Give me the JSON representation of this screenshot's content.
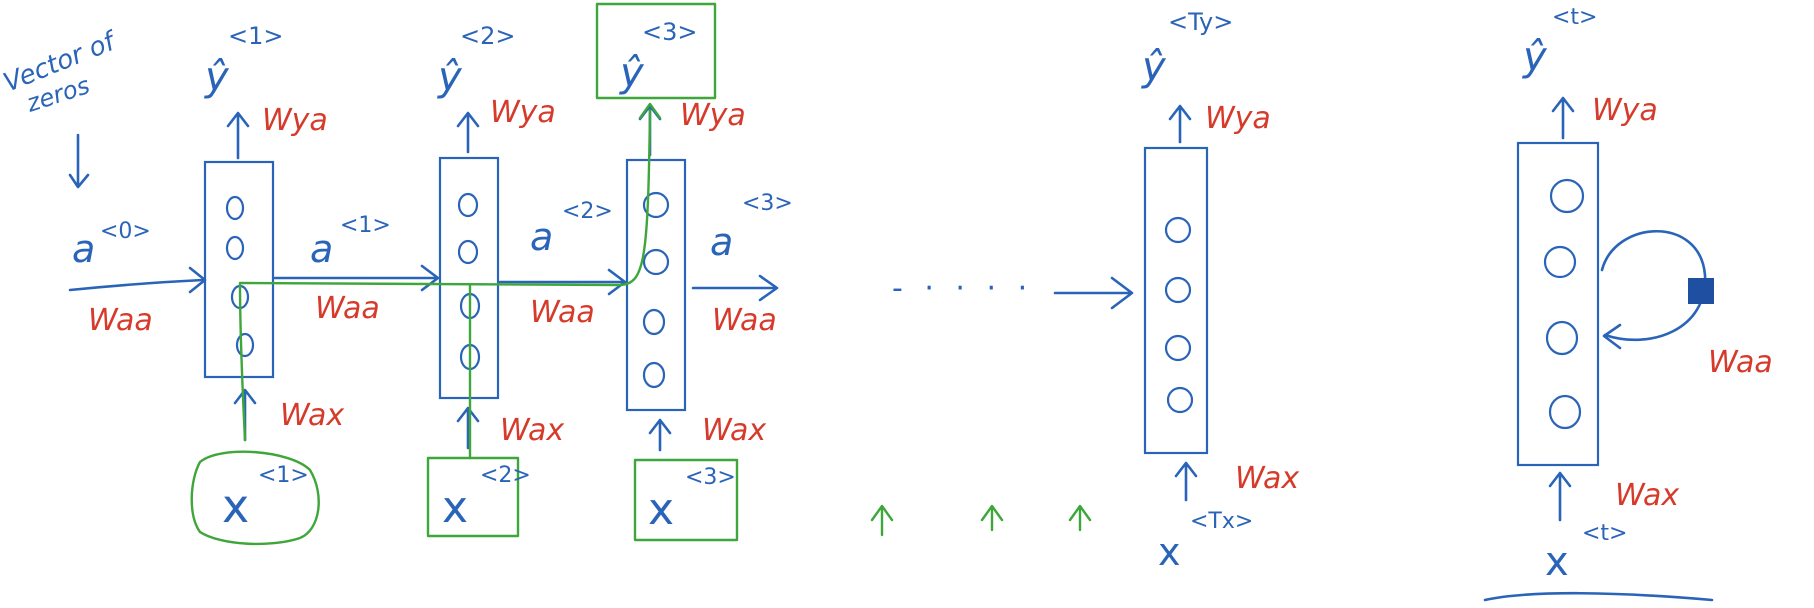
{
  "colors": {
    "ink_blue": "#2a64b8",
    "ink_red": "#d63a2a",
    "ink_green": "#3ea63a",
    "background": "#ffffff"
  },
  "note": {
    "line1": "Vector of",
    "line2": "zeros"
  },
  "steps": [
    {
      "y_hat": "ŷ",
      "y_sup": "<1>",
      "w_ya": "Wya",
      "a_in": "a",
      "a_in_sup": "<0>",
      "w_aa": "Waa",
      "w_ax": "Wax",
      "x": "x",
      "x_sup": "<1>"
    },
    {
      "y_hat": "ŷ",
      "y_sup": "<2>",
      "w_ya": "Wya",
      "a_in": "a",
      "a_in_sup": "<1>",
      "w_aa": "Waa",
      "w_ax": "Wax",
      "x": "x",
      "x_sup": "<2>"
    },
    {
      "y_hat": "ŷ",
      "y_sup": "<3>",
      "w_ya": "Wya",
      "a_in": "a",
      "a_in_sup": "<2>",
      "w_aa": "Waa",
      "w_ax": "Wax",
      "x": "x",
      "x_sup": "<3>"
    }
  ],
  "after_step3": {
    "a": "a",
    "a_sup": "<3>",
    "w_aa": "Waa"
  },
  "ellipsis": "- · · · ·",
  "last_step": {
    "y_hat": "ŷ",
    "y_sup": "<Ty>",
    "w_ya": "Wya",
    "w_ax": "Wax",
    "x": "x",
    "x_sup": "<Tx>"
  },
  "rolled": {
    "y_hat": "ŷ",
    "y_sup": "<t>",
    "w_ya": "Wya",
    "w_aa": "Waa",
    "w_ax": "Wax",
    "x": "x",
    "x_sup": "<t>"
  }
}
